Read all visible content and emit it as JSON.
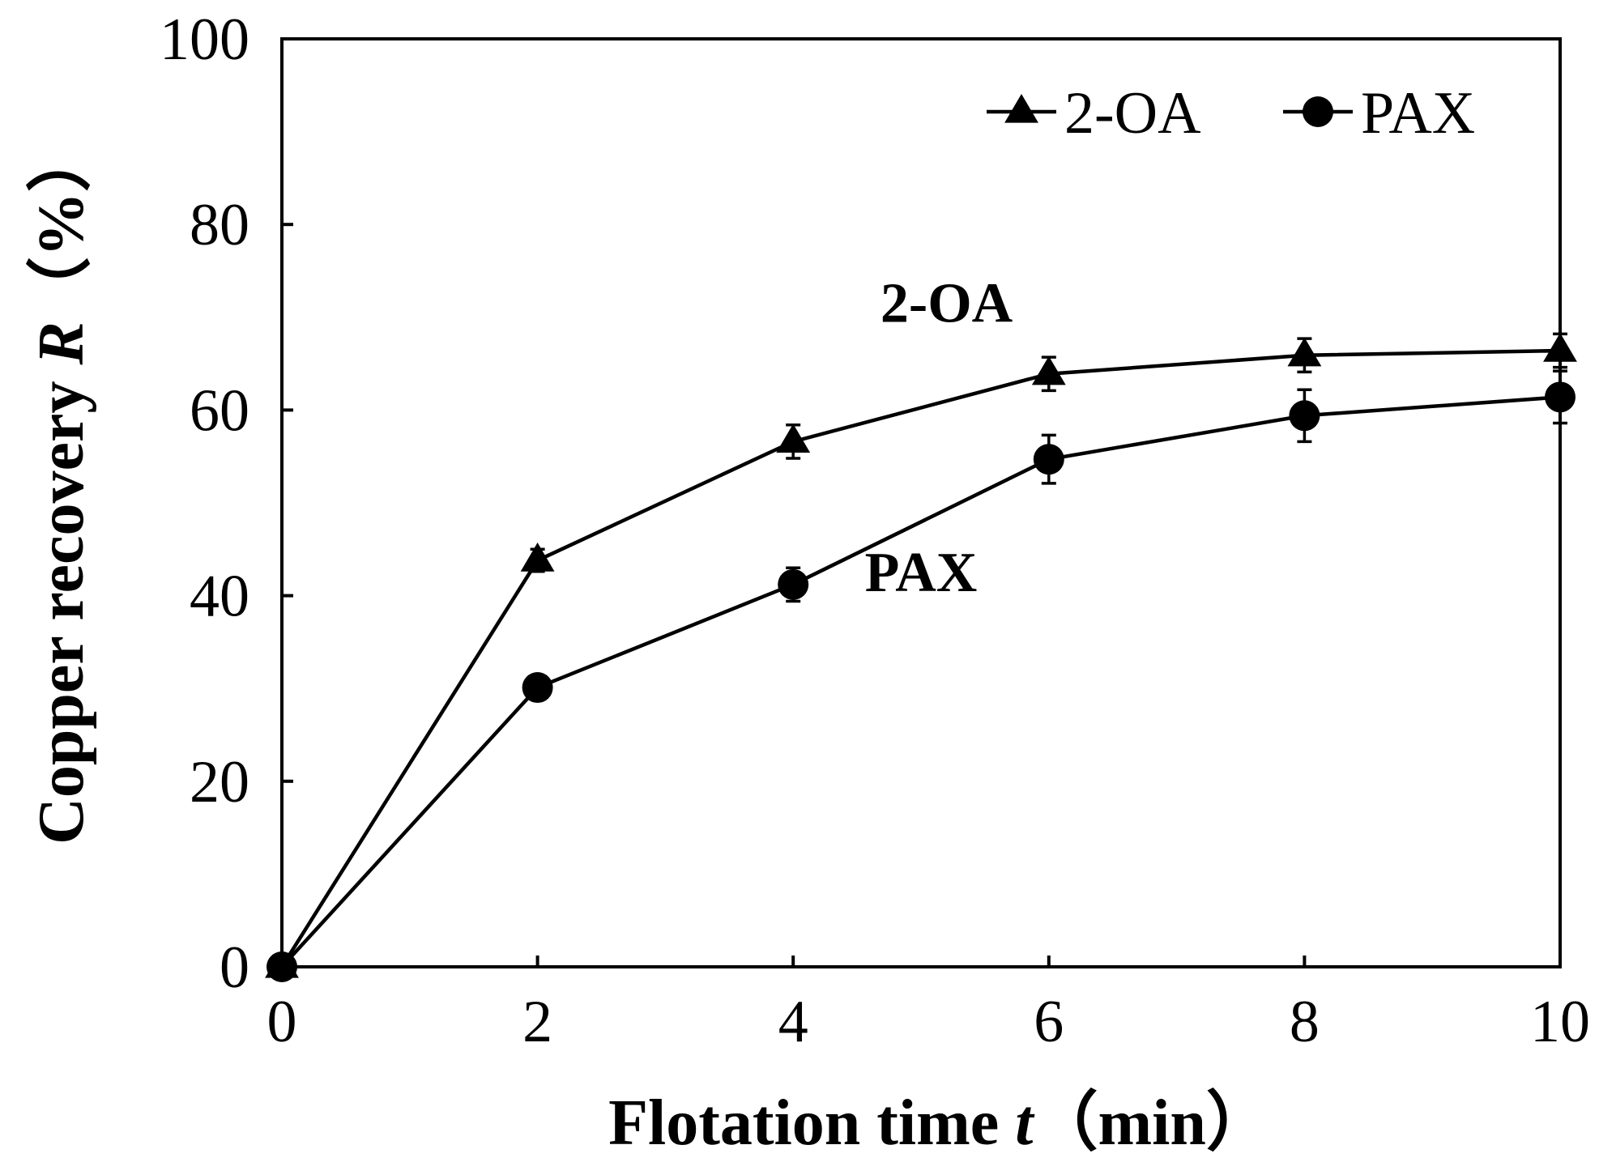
{
  "chart_data": {
    "type": "line",
    "xlabel": {
      "main": "Flotation time ",
      "var": "t",
      "unit": "（min）"
    },
    "ylabel": {
      "main": "Copper recovery ",
      "var": "R",
      "unit": "（%）"
    },
    "xlim": [
      0,
      10
    ],
    "ylim": [
      0,
      100
    ],
    "xticks": [
      0,
      2,
      4,
      6,
      8,
      10
    ],
    "yticks": [
      0,
      20,
      40,
      60,
      80,
      100
    ],
    "xtick_labels": [
      "0",
      "2",
      "4",
      "6",
      "8",
      "10"
    ],
    "ytick_labels": [
      "0",
      "20",
      "40",
      "60",
      "80",
      "100"
    ],
    "grid": false,
    "legend_position": "top-right",
    "x": [
      0,
      2,
      4,
      6,
      8,
      10
    ],
    "series": [
      {
        "name": "2-OA",
        "marker": "triangle",
        "values": [
          0,
          43.8,
          56.6,
          63.9,
          65.9,
          66.4
        ],
        "errors": [
          0,
          1.2,
          1.8,
          1.8,
          1.8,
          1.8
        ]
      },
      {
        "name": "PAX",
        "marker": "circle",
        "values": [
          0,
          30.1,
          41.2,
          54.7,
          59.4,
          61.4
        ],
        "errors": [
          0,
          1.0,
          1.8,
          2.6,
          2.8,
          2.8
        ]
      }
    ],
    "annotations": [
      {
        "text": "2-OA",
        "x": 5.2,
        "y": 69.5
      },
      {
        "text": "PAX",
        "x": 5.0,
        "y": 40.5
      }
    ],
    "colors": {
      "line": "#000000",
      "marker": "#000000",
      "background": "#ffffff"
    }
  }
}
